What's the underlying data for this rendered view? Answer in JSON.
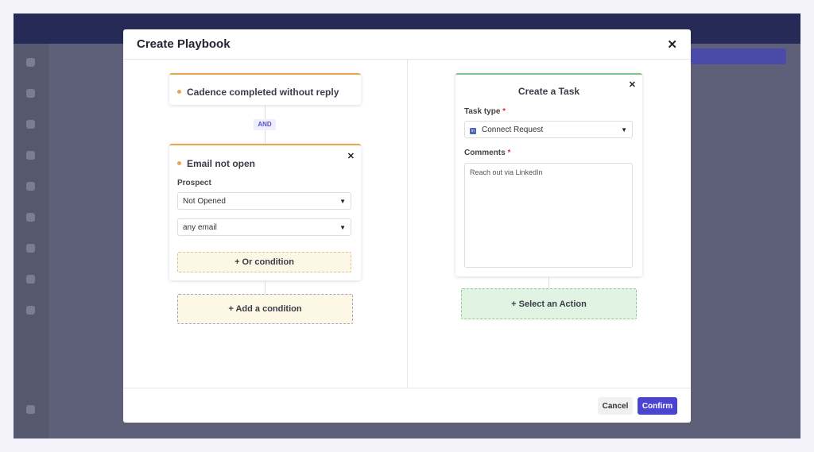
{
  "modal": {
    "title": "Create Playbook",
    "close_icon": "close-icon",
    "conditions": {
      "trigger": {
        "title": "Cadence completed without reply"
      },
      "connector": "AND",
      "condition": {
        "title": "Email not open",
        "prospect_label": "Prospect",
        "status_select": "Not Opened",
        "email_select": "any email",
        "or_condition": "+ Or condition"
      },
      "add_condition": "+ Add a condition"
    },
    "action": {
      "title": "Create a Task",
      "task_type_label": "Task type",
      "task_type_value": "Connect Request",
      "task_type_icon": "linkedin-icon",
      "comments_label": "Comments",
      "comments_value": "Reach out via LinkedIn",
      "required_mark": "*",
      "select_action": "+ Select an Action"
    },
    "footer": {
      "cancel": "Cancel",
      "confirm": "Confirm"
    }
  },
  "colors": {
    "accent": "#4b44cf",
    "condition": "#e8a650",
    "action": "#7cc48b"
  }
}
